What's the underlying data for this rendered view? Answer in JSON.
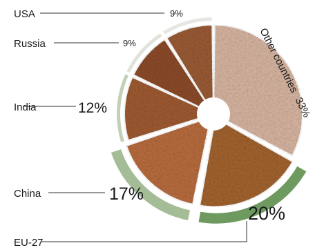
{
  "chart_data": {
    "type": "pie",
    "title": "",
    "slices": [
      {
        "label": "Other countries",
        "pct_text": "33%",
        "value": 33,
        "color": "#d7b5a1",
        "band": "",
        "outer": false
      },
      {
        "label": "EU-27",
        "pct_text": "20%",
        "value": 20,
        "color": "#a2632f",
        "band": "#6e9a5f",
        "outer": true
      },
      {
        "label": "China",
        "pct_text": "17%",
        "value": 17,
        "color": "#b86c3e",
        "band": "#a5bd96",
        "outer": true
      },
      {
        "label": "India",
        "pct_text": "12%",
        "value": 12,
        "color": "#9e5a32",
        "band": "#c3d0b8",
        "outer": false
      },
      {
        "label": "Russia",
        "pct_text": "9%",
        "value": 9,
        "color": "#8c4b2a",
        "band": "#e0e3dc",
        "outer": false
      },
      {
        "label": "USA",
        "pct_text": "9%",
        "value": 9,
        "color": "#9a5b35",
        "band": "#e6e6e2",
        "outer": false
      }
    ]
  }
}
